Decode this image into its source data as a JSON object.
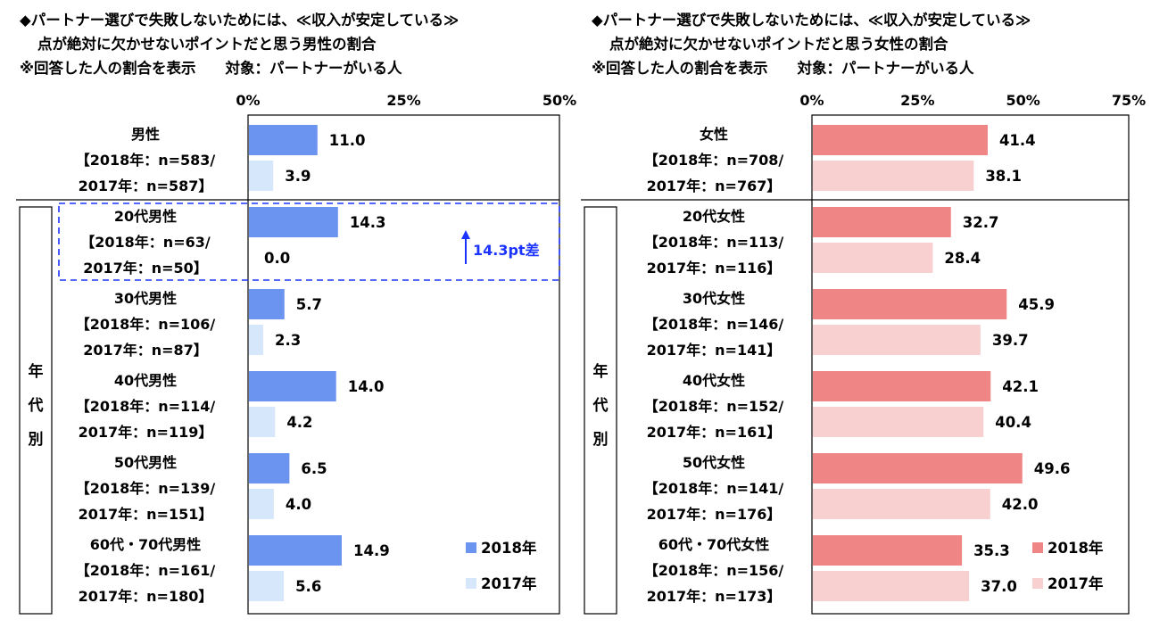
{
  "legend": {
    "y2018": "2018年",
    "y2017": "2017年"
  },
  "side_label": [
    "年",
    "代",
    "別"
  ],
  "annotation": "14.3pt差",
  "colors": {
    "male_2018": "#6b93f0",
    "male_2017": "#d6e7fb",
    "female_2018": "#f08585",
    "female_2017": "#f9d0d0",
    "annotation": "#1a33ff"
  },
  "chart_data": [
    {
      "type": "bar",
      "orientation": "horizontal",
      "title_lines": [
        "◆パートナー選びで失敗しないためには、≪収入が安定している≫",
        "点が絶対に欠かせないポイントだと思う男性の割合",
        "※回答した人の割合を表示　　対象：パートナーがいる人"
      ],
      "xlim": [
        0,
        50
      ],
      "xticks": [
        "0%",
        "25%",
        "50%"
      ],
      "grid": false,
      "legend_position": "bottom-right",
      "categories": [
        [
          "男性",
          "【2018年：n=583/",
          "2017年：n=587】"
        ],
        [
          "20代男性",
          "【2018年：n=63/",
          "2017年：n=50】"
        ],
        [
          "30代男性",
          "【2018年：n=106/",
          "2017年：n=87】"
        ],
        [
          "40代男性",
          "【2018年：n=114/",
          "2017年：n=119】"
        ],
        [
          "50代男性",
          "【2018年：n=139/",
          "2017年：n=151】"
        ],
        [
          "60代・70代男性",
          "【2018年：n=161/",
          "2017年：n=180】"
        ]
      ],
      "series": [
        {
          "name": "2018年",
          "values": [
            11.0,
            14.3,
            5.7,
            14.0,
            6.5,
            14.9
          ],
          "labels": [
            "11.0",
            "14.3",
            "5.7",
            "14.0",
            "6.5",
            "14.9"
          ]
        },
        {
          "name": "2017年",
          "values": [
            3.9,
            0.0,
            2.3,
            4.2,
            4.0,
            5.6
          ],
          "labels": [
            "3.9",
            "0.0",
            "2.3",
            "4.2",
            "4.0",
            "5.6"
          ]
        }
      ]
    },
    {
      "type": "bar",
      "orientation": "horizontal",
      "title_lines": [
        "◆パートナー選びで失敗しないためには、≪収入が安定している≫",
        "点が絶対に欠かせないポイントだと思う女性の割合",
        "※回答した人の割合を表示　　対象：パートナーがいる人"
      ],
      "xlim": [
        0,
        75
      ],
      "xticks": [
        "0%",
        "25%",
        "50%",
        "75%"
      ],
      "grid": false,
      "legend_position": "bottom-right",
      "categories": [
        [
          "女性",
          "【2018年：n=708/",
          "2017年：n=767】"
        ],
        [
          "20代女性",
          "【2018年：n=113/",
          "2017年：n=116】"
        ],
        [
          "30代女性",
          "【2018年：n=146/",
          "2017年：n=141】"
        ],
        [
          "40代女性",
          "【2018年：n=152/",
          "2017年：n=161】"
        ],
        [
          "50代女性",
          "【2018年：n=141/",
          "2017年：n=176】"
        ],
        [
          "60代・70代女性",
          "【2018年：n=156/",
          "2017年：n=173】"
        ]
      ],
      "series": [
        {
          "name": "2018年",
          "values": [
            41.4,
            32.7,
            45.9,
            42.1,
            49.6,
            35.3
          ],
          "labels": [
            "41.4",
            "32.7",
            "45.9",
            "42.1",
            "49.6",
            "35.3"
          ]
        },
        {
          "name": "2017年",
          "values": [
            38.1,
            28.4,
            39.7,
            40.4,
            42.0,
            37.0
          ],
          "labels": [
            "38.1",
            "28.4",
            "39.7",
            "40.4",
            "42.0",
            "37.0"
          ]
        }
      ]
    }
  ]
}
